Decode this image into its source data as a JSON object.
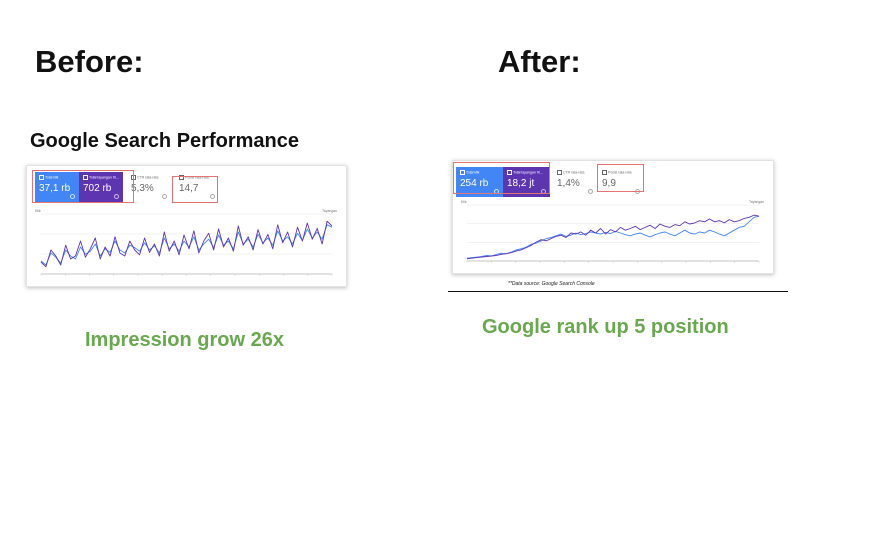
{
  "before": {
    "heading": "Before:",
    "title": "Google Search Performance",
    "caption": "Impression grow 26x",
    "metrics": [
      {
        "label": "Total klik",
        "value": "37,1 rb"
      },
      {
        "label": "Total tayangan ht...",
        "value": "702 rb"
      },
      {
        "label": "CTR rata-rata",
        "value": "5,3%"
      },
      {
        "label": "Posisi rata-rata",
        "value": "14,7"
      }
    ],
    "axis_left_title": "Klik",
    "axis_right_title": "Tayangan"
  },
  "after": {
    "heading": "After:",
    "caption": "Google rank up 5 position",
    "footnote": "**Data source: Google Search Console",
    "metrics": [
      {
        "label": "Total klik",
        "value": "254 rb"
      },
      {
        "label": "Total tayangan ht...",
        "value": "18,2 jt"
      },
      {
        "label": "CTR rata-rata",
        "value": "1,4%"
      },
      {
        "label": "Posisi rata-rata",
        "value": "9,9"
      }
    ],
    "axis_left_title": "Klik",
    "axis_right_title": "Tayangan"
  },
  "colors": {
    "clicks": "#4285f4",
    "impressions": "#5e35b1",
    "caption": "#6aa84f",
    "highlight": "#e57373"
  },
  "chart_data": [
    {
      "type": "line",
      "title": "Google Search Performance",
      "y_left_label": "Klik",
      "y_right_label": "Tayangan",
      "x": [
        1,
        2,
        3,
        4,
        5,
        6,
        7,
        8,
        9,
        10,
        11,
        12,
        13,
        14,
        15,
        16,
        17,
        18,
        19,
        20,
        21,
        22,
        23,
        24,
        25,
        26,
        27,
        28,
        29,
        30,
        31,
        32,
        33,
        34,
        35,
        36,
        37,
        38,
        39,
        40,
        41,
        42,
        43,
        44,
        45,
        46,
        47,
        48,
        49,
        50,
        51,
        52,
        53,
        54,
        55,
        56,
        57,
        58,
        59,
        60
      ],
      "series": [
        {
          "name": "Total klik",
          "values": [
            0.22,
            0.15,
            0.35,
            0.28,
            0.18,
            0.4,
            0.3,
            0.25,
            0.45,
            0.33,
            0.38,
            0.5,
            0.3,
            0.42,
            0.36,
            0.55,
            0.4,
            0.35,
            0.48,
            0.44,
            0.38,
            0.52,
            0.4,
            0.47,
            0.35,
            0.6,
            0.42,
            0.5,
            0.38,
            0.55,
            0.45,
            0.62,
            0.4,
            0.5,
            0.58,
            0.44,
            0.65,
            0.48,
            0.55,
            0.42,
            0.7,
            0.5,
            0.58,
            0.45,
            0.66,
            0.52,
            0.6,
            0.48,
            0.72,
            0.55,
            0.62,
            0.5,
            0.68,
            0.56,
            0.75,
            0.6,
            0.7,
            0.58,
            0.82,
            0.78
          ]
        },
        {
          "name": "Total tayangan",
          "values": [
            0.2,
            0.12,
            0.4,
            0.3,
            0.15,
            0.48,
            0.25,
            0.3,
            0.55,
            0.28,
            0.42,
            0.6,
            0.25,
            0.45,
            0.3,
            0.62,
            0.35,
            0.3,
            0.55,
            0.4,
            0.32,
            0.6,
            0.36,
            0.5,
            0.3,
            0.7,
            0.38,
            0.55,
            0.32,
            0.65,
            0.42,
            0.72,
            0.35,
            0.55,
            0.68,
            0.4,
            0.75,
            0.45,
            0.6,
            0.38,
            0.8,
            0.48,
            0.62,
            0.4,
            0.74,
            0.5,
            0.66,
            0.42,
            0.82,
            0.52,
            0.7,
            0.45,
            0.78,
            0.55,
            0.85,
            0.58,
            0.76,
            0.5,
            0.88,
            0.8
          ]
        }
      ],
      "ylim": [
        0,
        1
      ],
      "grid": true
    },
    {
      "type": "line",
      "y_left_label": "Klik",
      "y_right_label": "Tayangan",
      "x": [
        1,
        2,
        3,
        4,
        5,
        6,
        7,
        8,
        9,
        10,
        11,
        12,
        13,
        14,
        15,
        16,
        17,
        18,
        19,
        20,
        21,
        22,
        23,
        24,
        25,
        26,
        27,
        28,
        29,
        30,
        31,
        32,
        33,
        34,
        35,
        36,
        37,
        38,
        39,
        40,
        41,
        42,
        43,
        44,
        45,
        46,
        47,
        48,
        49,
        50,
        51,
        52,
        53,
        54,
        55,
        56,
        57,
        58,
        59,
        60
      ],
      "series": [
        {
          "name": "Total klik",
          "values": [
            0.05,
            0.06,
            0.07,
            0.08,
            0.1,
            0.09,
            0.12,
            0.14,
            0.13,
            0.16,
            0.2,
            0.22,
            0.25,
            0.3,
            0.32,
            0.36,
            0.4,
            0.42,
            0.45,
            0.48,
            0.44,
            0.46,
            0.5,
            0.47,
            0.49,
            0.52,
            0.5,
            0.48,
            0.51,
            0.49,
            0.53,
            0.5,
            0.47,
            0.45,
            0.48,
            0.5,
            0.46,
            0.43,
            0.47,
            0.5,
            0.52,
            0.48,
            0.45,
            0.5,
            0.55,
            0.5,
            0.48,
            0.52,
            0.5,
            0.55,
            0.52,
            0.48,
            0.45,
            0.5,
            0.55,
            0.6,
            0.62,
            0.7,
            0.78,
            0.8
          ]
        },
        {
          "name": "Total tayangan",
          "values": [
            0.04,
            0.05,
            0.06,
            0.07,
            0.08,
            0.09,
            0.1,
            0.12,
            0.13,
            0.15,
            0.18,
            0.2,
            0.24,
            0.28,
            0.34,
            0.38,
            0.36,
            0.4,
            0.44,
            0.46,
            0.42,
            0.5,
            0.48,
            0.52,
            0.46,
            0.55,
            0.5,
            0.58,
            0.48,
            0.56,
            0.52,
            0.6,
            0.55,
            0.58,
            0.62,
            0.56,
            0.6,
            0.64,
            0.58,
            0.66,
            0.62,
            0.6,
            0.65,
            0.63,
            0.7,
            0.66,
            0.68,
            0.72,
            0.7,
            0.75,
            0.7,
            0.72,
            0.68,
            0.74,
            0.7,
            0.72,
            0.76,
            0.78,
            0.82,
            0.8
          ]
        }
      ],
      "ylim": [
        0,
        1
      ],
      "grid": true
    }
  ]
}
